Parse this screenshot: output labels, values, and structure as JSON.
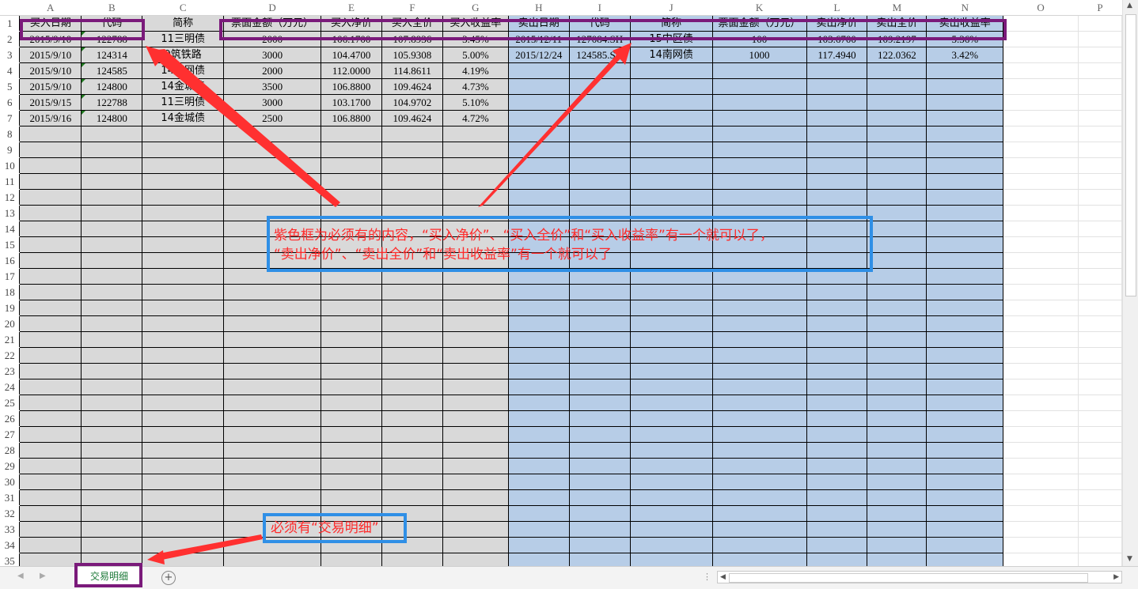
{
  "columns": [
    "A",
    "B",
    "C",
    "D",
    "E",
    "F",
    "G",
    "H",
    "I",
    "J",
    "K",
    "L",
    "M",
    "N",
    "O",
    "P"
  ],
  "row_numbers": [
    "1",
    "2",
    "3",
    "4",
    "5",
    "6",
    "7",
    "8",
    "9",
    "10",
    "11",
    "12",
    "13",
    "14",
    "15",
    "16",
    "17",
    "18",
    "19",
    "20",
    "21",
    "22",
    "23",
    "24",
    "25",
    "26",
    "27",
    "28",
    "29",
    "30",
    "31",
    "32",
    "33",
    "34",
    "35"
  ],
  "headers": [
    "买入日期",
    "代码",
    "简称",
    "票面金额（万元）",
    "买入净价",
    "买入全价",
    "买入收益率",
    "卖出日期",
    "代码",
    "简称",
    "票面金额（万元）",
    "卖出净价",
    "卖出全价",
    "卖出收益率"
  ],
  "rows": [
    [
      "2015/9/10",
      "122788",
      "11三明债",
      "2000",
      "106.1700",
      "107.8936",
      "3.45%",
      "2015/12/11",
      "127084.SH",
      "15中区债",
      "100",
      "103.6700",
      "109.2197",
      "5.36%"
    ],
    [
      "2015/9/10",
      "124314",
      "9筑铁路",
      "3000",
      "104.4700",
      "105.9308",
      "5.00%",
      "2015/12/24",
      "124585.SH",
      "14南网债",
      "1000",
      "117.4940",
      "122.0362",
      "3.42%"
    ],
    [
      "2015/9/10",
      "124585",
      "14南网债",
      "2000",
      "112.0000",
      "114.8611",
      "4.19%",
      "",
      "",
      "",
      "",
      "",
      "",
      ""
    ],
    [
      "2015/9/10",
      "124800",
      "14金城债",
      "3500",
      "106.8800",
      "109.4624",
      "4.73%",
      "",
      "",
      "",
      "",
      "",
      "",
      ""
    ],
    [
      "2015/9/15",
      "122788",
      "11三明债",
      "3000",
      "103.1700",
      "104.9702",
      "5.10%",
      "",
      "",
      "",
      "",
      "",
      "",
      ""
    ],
    [
      "2015/9/16",
      "124800",
      "14金城债",
      "2500",
      "106.8800",
      "109.4624",
      "4.72%",
      "",
      "",
      "",
      "",
      "",
      "",
      ""
    ]
  ],
  "annotations": {
    "main_note_line1": "紫色框为必须有的内容，“买入净价”、“买入全价”和“买入收益率”有一个就可以了，",
    "main_note_line2": "“卖出净价”、“卖出全价”和“卖出收益率”有一个就可以了",
    "sheet_note": "必须有“交易明细”"
  },
  "sheet_tabs": [
    {
      "label": "交易明细",
      "active": true
    }
  ],
  "colors": {
    "buy_fill": "#d9d9d9",
    "sell_fill": "#b7cde7",
    "purple_box": "#7a1a7a",
    "blue_box": "#2f8fe6",
    "note_text": "#ff2a2a",
    "arrow": "#ff3030"
  },
  "icons": {
    "add_sheet": "plus-circle-icon",
    "scroll_up": "caret-up-icon",
    "scroll_down": "caret-down-icon",
    "scroll_left": "caret-left-icon",
    "scroll_right": "caret-right-icon"
  }
}
